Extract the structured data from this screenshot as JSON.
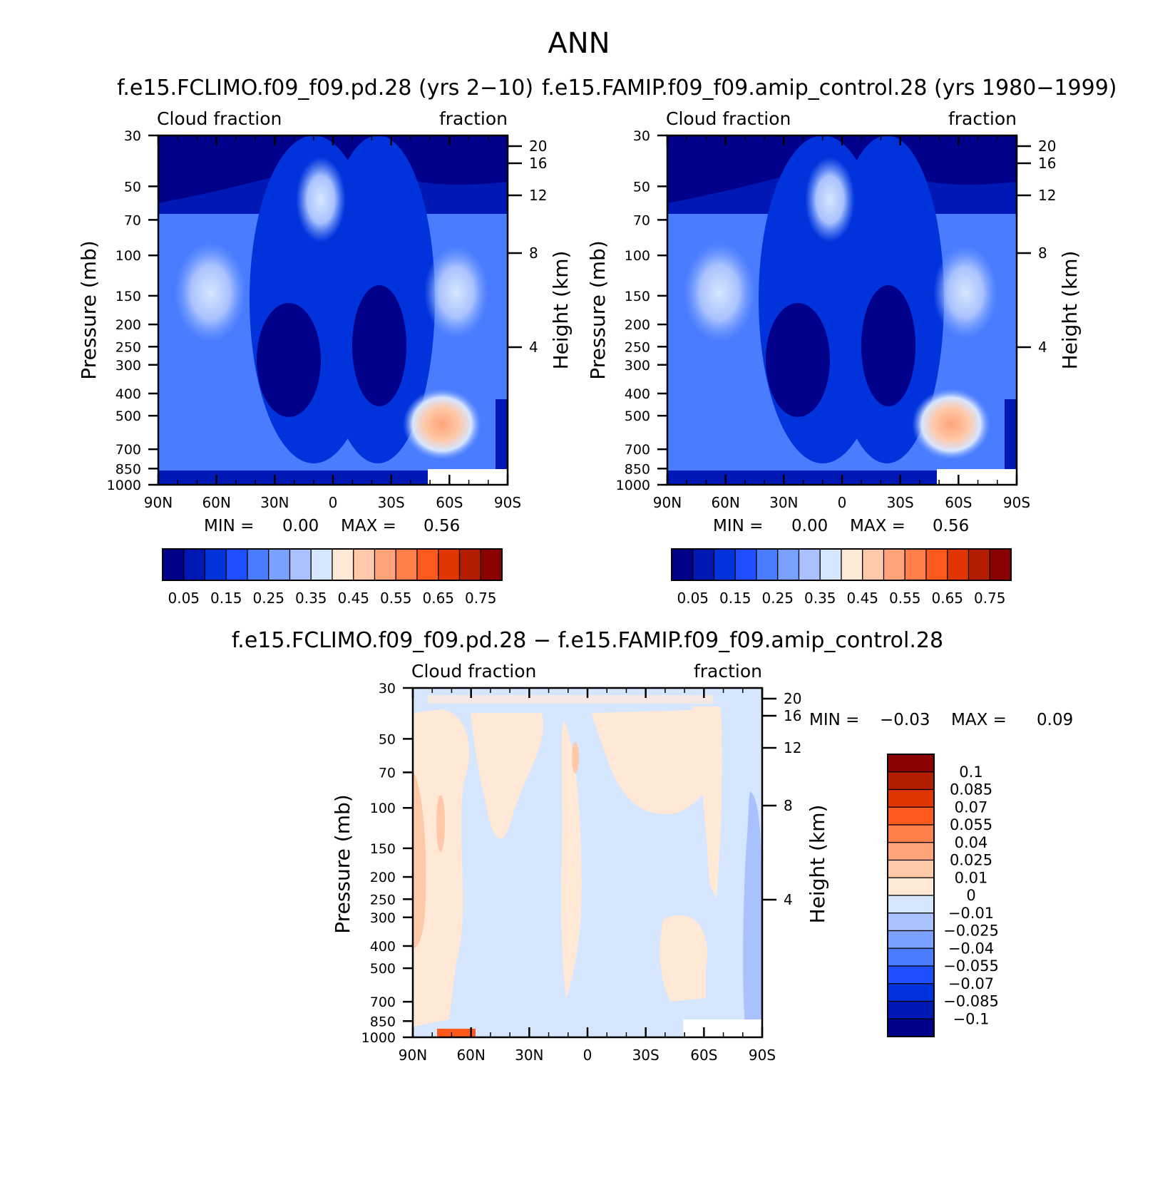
{
  "figure": {
    "title": "ANN",
    "difference_title": "f.e15.FCLIMO.f09_f09.pd.28 − f.e15.FAMIP.f09_f09.amip_control.28"
  },
  "chart_data": [
    {
      "type": "contour",
      "panel": "case",
      "title": "f.e15.FCLIMO.f09_f09.pd.28 (yrs 2−10)",
      "left_label": "Cloud fraction",
      "right_label": "fraction",
      "xlabel": "",
      "ylabel": "Pressure (mb)",
      "ylabel_right": "Height (km)",
      "x_ticks": [
        "90N",
        "60N",
        "30N",
        "0",
        "30S",
        "60S",
        "90S"
      ],
      "y_ticks": [
        "30",
        "50",
        "70",
        "100",
        "150",
        "200",
        "250",
        "300",
        "400",
        "500",
        "700",
        "850",
        "1000"
      ],
      "y_ticks_right": [
        "20",
        "16",
        "12",
        "8",
        "4"
      ],
      "xlim": [
        90,
        -90
      ],
      "ylim": [
        1000,
        30
      ],
      "min_label": "MIN =",
      "min_value": "0.00",
      "max_label": "MAX =",
      "max_value": "0.56",
      "colorbar_labels": [
        "0.05",
        "0.15",
        "0.25",
        "0.35",
        "0.45",
        "0.55",
        "0.65",
        "0.75"
      ],
      "colorbar_colors": [
        "#00008b",
        "#0019b4",
        "#0033dc",
        "#1e50ff",
        "#4a7cff",
        "#7aa1ff",
        "#a9c2ff",
        "#d6e6ff",
        "#ffe9d6",
        "#ffc8a8",
        "#ffa47a",
        "#ff7f4a",
        "#ff5a1e",
        "#e03500",
        "#b41e00",
        "#8b0000"
      ]
    },
    {
      "type": "contour",
      "panel": "control",
      "title": "f.e15.FAMIP.f09_f09.amip_control.28 (yrs 1980−1999)",
      "left_label": "Cloud fraction",
      "right_label": "fraction",
      "xlabel": "",
      "ylabel": "Pressure (mb)",
      "ylabel_right": "Height (km)",
      "x_ticks": [
        "90N",
        "60N",
        "30N",
        "0",
        "30S",
        "60S",
        "90S"
      ],
      "y_ticks": [
        "30",
        "50",
        "70",
        "100",
        "150",
        "200",
        "250",
        "300",
        "400",
        "500",
        "700",
        "850",
        "1000"
      ],
      "y_ticks_right": [
        "20",
        "16",
        "12",
        "8",
        "4"
      ],
      "xlim": [
        90,
        -90
      ],
      "ylim": [
        1000,
        30
      ],
      "min_label": "MIN =",
      "min_value": "0.00",
      "max_label": "MAX =",
      "max_value": "0.56",
      "colorbar_labels": [
        "0.05",
        "0.15",
        "0.25",
        "0.35",
        "0.45",
        "0.55",
        "0.65",
        "0.75"
      ],
      "colorbar_colors": [
        "#00008b",
        "#0019b4",
        "#0033dc",
        "#1e50ff",
        "#4a7cff",
        "#7aa1ff",
        "#a9c2ff",
        "#d6e6ff",
        "#ffe9d6",
        "#ffc8a8",
        "#ffa47a",
        "#ff7f4a",
        "#ff5a1e",
        "#e03500",
        "#b41e00",
        "#8b0000"
      ]
    },
    {
      "type": "contour",
      "panel": "difference",
      "left_label": "Cloud fraction",
      "right_label": "fraction",
      "xlabel": "",
      "ylabel": "Pressure (mb)",
      "ylabel_right": "Height (km)",
      "x_ticks": [
        "90N",
        "60N",
        "30N",
        "0",
        "30S",
        "60S",
        "90S"
      ],
      "y_ticks": [
        "30",
        "50",
        "70",
        "100",
        "150",
        "200",
        "250",
        "300",
        "400",
        "500",
        "700",
        "850",
        "1000"
      ],
      "y_ticks_right": [
        "20",
        "16",
        "12",
        "8",
        "4"
      ],
      "xlim": [
        90,
        -90
      ],
      "ylim": [
        1000,
        30
      ],
      "min_label": "MIN =",
      "min_value": "−0.03",
      "max_label": "MAX =",
      "max_value": "0.09",
      "colorbar_labels": [
        "0.1",
        "0.085",
        "0.07",
        "0.055",
        "0.04",
        "0.025",
        "0.01",
        "0",
        "−0.01",
        "−0.025",
        "−0.04",
        "−0.055",
        "−0.07",
        "−0.085",
        "−0.1"
      ],
      "colorbar_colors": [
        "#8b0000",
        "#b41e00",
        "#e03500",
        "#ff5a1e",
        "#ff7f4a",
        "#ffa47a",
        "#ffc8a8",
        "#ffe9d6",
        "#d6e6ff",
        "#a9c2ff",
        "#7aa1ff",
        "#4a7cff",
        "#1e50ff",
        "#0033dc",
        "#0019b4",
        "#00008b"
      ]
    }
  ]
}
